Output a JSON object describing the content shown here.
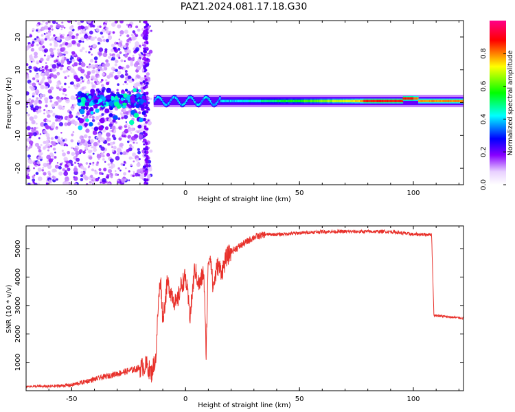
{
  "title": "PAZ1.2024.081.17.18.G30",
  "chart_data": [
    {
      "type": "heatmap",
      "xlabel": "Height of straight line (km)",
      "ylabel": "Frequency (Hz)",
      "xlim": [
        -70,
        122
      ],
      "ylim": [
        -25,
        25
      ],
      "xticks": [
        -50,
        0,
        50,
        100
      ],
      "yticks": [
        -20,
        -10,
        0,
        10,
        20
      ],
      "grid": false,
      "colorbar": {
        "label": "Normalized spectral amplitude",
        "range": [
          0.0,
          1.0
        ],
        "ticks": [
          "0.0",
          "0.2",
          "0.4",
          "0.6",
          "0.8"
        ],
        "colormap": [
          "#ffffff",
          "#8800ff",
          "#0000ff",
          "#00ffff",
          "#00ff00",
          "#ffff00",
          "#ff0000",
          "#ff0088"
        ]
      },
      "features": [
        {
          "name": "noise",
          "x_range": [
            -70,
            -15
          ],
          "freq_range": [
            -25,
            25
          ],
          "amplitude": 0.15
        },
        {
          "name": "early-signal",
          "x_range": [
            -47,
            -18
          ],
          "freq_range": [
            -8,
            4
          ],
          "amplitude": 0.3
        },
        {
          "name": "carrier-line",
          "x_range": [
            -14,
            122
          ],
          "freq_center": 0.5,
          "amplitude_start": 0.4,
          "amplitude_peak": 0.85,
          "peak_x": [
            78,
            100
          ]
        }
      ]
    },
    {
      "type": "line",
      "xlabel": "Height of straight line (km)",
      "ylabel": "SNR (10 * v/v)",
      "xlim": [
        -70,
        122
      ],
      "ylim": [
        0,
        5800
      ],
      "xticks": [
        -50,
        0,
        50,
        100
      ],
      "yticks": [
        1000,
        2000,
        3000,
        4000,
        5000
      ],
      "grid": false,
      "line_color": "#e8312b",
      "series": [
        {
          "x": [
            -70,
            -60,
            -50,
            -45,
            -40,
            -35,
            -30,
            -25,
            -20,
            -17,
            -15,
            -13,
            -12,
            -11,
            -10,
            -8,
            -6,
            -4,
            -2,
            0,
            2,
            4,
            6,
            8,
            9,
            10,
            11,
            12,
            14,
            16,
            18,
            20,
            22,
            25,
            28,
            30,
            35,
            40,
            50,
            60,
            70,
            80,
            90,
            100,
            105,
            108,
            109,
            110,
            115,
            122
          ],
          "y": [
            150,
            150,
            200,
            300,
            400,
            500,
            600,
            700,
            800,
            900,
            600,
            1200,
            3000,
            4000,
            2500,
            3800,
            3400,
            3000,
            3700,
            4000,
            2600,
            4300,
            3700,
            4200,
            1300,
            4600,
            4800,
            3600,
            4400,
            4200,
            4700,
            4900,
            5000,
            5150,
            5300,
            5400,
            5500,
            5500,
            5550,
            5600,
            5600,
            5600,
            5600,
            5500,
            5500,
            5500,
            2650,
            2650,
            2600,
            2550
          ]
        }
      ]
    }
  ]
}
